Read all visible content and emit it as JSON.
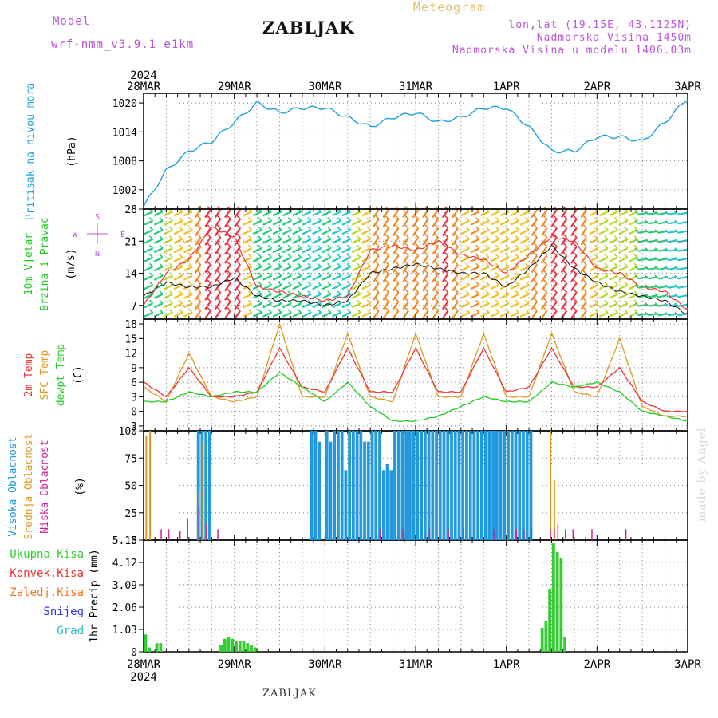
{
  "header": {
    "model_label": "Model",
    "model_name": "wrf-nmm_v3.9.1  e1km",
    "station": "ZABLJAK",
    "meteogram_label": "Meteogram",
    "lonlat": "lon,lat (19.15E, 43.1125N)",
    "altitude": "Nadmorska Visina 1450m",
    "model_altitude": "Nadmorska Visina u modelu 1406.03m",
    "watermark": "made by Angel",
    "footer_station": "ZABLJAK"
  },
  "colors": {
    "pressure": "#1ea0e0",
    "wind_label": "#22cc22",
    "t2m": "#ee3333",
    "sfc": "#dd9922",
    "dew": "#22cc22",
    "cloud_high": "#2299dd",
    "cloud_mid": "#dd9922",
    "cloud_low": "#cc2299",
    "precip_total": "#33cc33",
    "precip_conv": "#ee3333",
    "precip_frozen": "#ee7722",
    "snow": "#3333ee",
    "hail": "#22bbbb",
    "compass": "#bb55dd"
  },
  "axis": {
    "year": "2024",
    "dates": [
      "28MAR",
      "29MAR",
      "30MAR",
      "31MAR",
      "1APR",
      "2APR",
      "3APR"
    ]
  },
  "panels": {
    "pressure": {
      "label_lines": [
        "Pritisak na nivou mora"
      ],
      "unit": "(hPa)"
    },
    "wind": {
      "label_lines": [
        "10m Vjetar",
        "Brzina i Pravac"
      ],
      "unit": "(m/s)",
      "compass_labels": [
        "S",
        "W",
        "E",
        "N"
      ]
    },
    "temperature": {
      "label_lines": [
        "2m Temp",
        "SFC Temp",
        "dewpt Temp"
      ],
      "unit": "(C)"
    },
    "cloud": {
      "label_lines": [
        "Visoka Oblacnost",
        "Srednja Oblacnost",
        "Niska Oblacnost"
      ],
      "unit": "(%)"
    },
    "precip": {
      "legend": [
        "Ukupna Kisa",
        "Konvek.Kisa",
        "Zaledj.Kisa",
        "Snijeg",
        "Grad"
      ],
      "unit": "1hr Precip (mm)"
    }
  },
  "chart_data": [
    {
      "type": "line",
      "title": "Pritisak na nivou mora",
      "ylabel": "(hPa)",
      "ylim": [
        998,
        1022
      ],
      "yticks": [
        1002,
        1008,
        1014,
        1020
      ],
      "x_unit": "hours since 28MAR 00",
      "series": [
        {
          "name": "Pritisak na nivou mora",
          "x": [
            0,
            6,
            12,
            18,
            24,
            30,
            36,
            42,
            48,
            54,
            60,
            66,
            72,
            78,
            84,
            90,
            96,
            102,
            108,
            114,
            120,
            126,
            132,
            138,
            144
          ],
          "values": [
            998.5,
            1006,
            1010,
            1012,
            1016,
            1020,
            1018,
            1019,
            1019,
            1017,
            1015,
            1017,
            1018,
            1016,
            1017,
            1019,
            1019,
            1015,
            1010,
            1010,
            1013,
            1013,
            1012,
            1016,
            1021
          ]
        }
      ]
    },
    {
      "type": "line",
      "title": "10m Vjetar Brzina i Pravac",
      "ylabel": "(m/s)",
      "ylim": [
        4,
        28
      ],
      "yticks": [
        7,
        14,
        21,
        28
      ],
      "x_unit": "hours since 28MAR 00",
      "series": [
        {
          "name": "mean",
          "x": [
            0,
            6,
            12,
            18,
            24,
            30,
            36,
            42,
            48,
            54,
            60,
            66,
            72,
            78,
            84,
            90,
            96,
            102,
            108,
            114,
            120,
            126,
            132,
            138,
            144
          ],
          "values": [
            9,
            12,
            11,
            11,
            13,
            9,
            8,
            8,
            7,
            8,
            14,
            15,
            16,
            15,
            14,
            14,
            11,
            15,
            20,
            15,
            12,
            10,
            9,
            8,
            5
          ]
        },
        {
          "name": "gust",
          "x": [
            0,
            6,
            12,
            18,
            24,
            30,
            36,
            42,
            48,
            54,
            60,
            66,
            72,
            78,
            84,
            90,
            96,
            102,
            108,
            114,
            120,
            126,
            132,
            138,
            144
          ],
          "values": [
            7,
            14,
            17,
            24,
            22,
            11,
            10,
            9,
            8,
            9,
            19,
            20,
            19,
            21,
            18,
            17,
            14,
            18,
            22,
            21,
            15,
            14,
            11,
            10,
            6
          ]
        }
      ]
    },
    {
      "type": "line",
      "title": "2m Temp / SFC Temp / dewpt Temp",
      "ylabel": "(C)",
      "ylim": [
        -4,
        19
      ],
      "yticks": [
        -3,
        0,
        3,
        6,
        9,
        12,
        15,
        18
      ],
      "x_unit": "hours since 28MAR 00",
      "series": [
        {
          "name": "2m Temp",
          "x": [
            0,
            6,
            12,
            18,
            24,
            30,
            36,
            42,
            48,
            54,
            60,
            66,
            72,
            78,
            84,
            90,
            96,
            102,
            108,
            114,
            120,
            126,
            132,
            138,
            144
          ],
          "values": [
            6,
            3,
            9,
            3,
            3,
            4,
            13,
            5,
            4,
            13,
            4,
            4,
            13,
            4,
            4,
            13,
            4,
            5,
            13,
            5,
            5,
            9,
            2,
            0,
            0
          ]
        },
        {
          "name": "SFC Temp",
          "x": [
            0,
            6,
            12,
            18,
            24,
            30,
            36,
            42,
            48,
            54,
            60,
            66,
            72,
            78,
            84,
            90,
            96,
            102,
            108,
            114,
            120,
            126,
            132,
            138,
            144
          ],
          "values": [
            5,
            2,
            12,
            3,
            2,
            3,
            18,
            3,
            3,
            16,
            3,
            2,
            16,
            3,
            3,
            16,
            3,
            3,
            16,
            4,
            3,
            15,
            1,
            -1,
            -1
          ]
        },
        {
          "name": "dewpt Temp",
          "x": [
            0,
            6,
            12,
            18,
            24,
            30,
            36,
            42,
            48,
            54,
            60,
            66,
            72,
            78,
            84,
            90,
            96,
            102,
            108,
            114,
            120,
            126,
            132,
            138,
            144
          ],
          "values": [
            2,
            2,
            4,
            3,
            4,
            4,
            8,
            5,
            2,
            6,
            1,
            -2,
            -2,
            -1,
            1,
            3,
            2,
            2,
            6,
            5,
            6,
            4,
            0,
            -1,
            -2
          ]
        }
      ]
    },
    {
      "type": "bar",
      "title": "Oblacnost",
      "ylabel": "(%)",
      "ylim": [
        0,
        100
      ],
      "yticks": [
        0,
        25,
        50,
        75,
        100
      ],
      "x_unit": "hours since 28MAR 00",
      "series": [
        {
          "name": "Visoka Oblacnost",
          "x": [
            14,
            15,
            16,
            17,
            44,
            45,
            46,
            48,
            49,
            50,
            51,
            52,
            53,
            54,
            55,
            56,
            57,
            58,
            59,
            60,
            61,
            62,
            63,
            64,
            65,
            66,
            67,
            68,
            69,
            70,
            71,
            72,
            73,
            74,
            75,
            76,
            77,
            78,
            79,
            80,
            81,
            82,
            83,
            84,
            85,
            86,
            87,
            88,
            89,
            90,
            91,
            92,
            93,
            94,
            95,
            96,
            97,
            98,
            99,
            100,
            101,
            102
          ],
          "values": [
            100,
            100,
            100,
            100,
            100,
            100,
            90,
            100,
            90,
            100,
            100,
            100,
            64,
            100,
            100,
            100,
            100,
            90,
            90,
            100,
            100,
            100,
            64,
            70,
            64,
            100,
            100,
            100,
            100,
            100,
            100,
            100,
            100,
            100,
            100,
            100,
            100,
            100,
            100,
            100,
            100,
            100,
            100,
            100,
            100,
            100,
            100,
            100,
            100,
            100,
            100,
            100,
            100,
            100,
            100,
            100,
            100,
            100,
            100,
            100,
            100,
            100
          ]
        },
        {
          "name": "Srednja Oblacnost",
          "x": [
            0,
            1,
            14,
            15,
            107,
            108
          ],
          "values": [
            95,
            100,
            45,
            90,
            100,
            55
          ]
        },
        {
          "name": "Niska Oblacnost",
          "x": [
            4,
            6,
            9,
            11,
            14,
            16,
            19,
            62,
            68,
            75,
            80,
            84,
            92,
            98,
            100,
            102,
            107,
            108,
            109,
            111,
            113,
            118,
            127
          ],
          "values": [
            10,
            10,
            8,
            20,
            30,
            15,
            10,
            10,
            10,
            10,
            10,
            10,
            10,
            10,
            10,
            10,
            10,
            10,
            15,
            10,
            10,
            10,
            10
          ]
        }
      ]
    },
    {
      "type": "bar",
      "title": "1hr Precip",
      "ylabel": "1hr Precip (mm)",
      "ylim": [
        0,
        5.15
      ],
      "yticks": [
        0,
        1.03,
        2.06,
        3.09,
        4.12,
        5.15
      ],
      "x_unit": "hours since 28MAR 00",
      "series": [
        {
          "name": "Ukupna Kisa",
          "x": [
            0,
            1,
            3,
            4,
            20,
            21,
            22,
            23,
            24,
            25,
            26,
            27,
            28,
            29,
            105,
            106,
            107,
            108,
            109,
            110,
            111
          ],
          "values": [
            0.8,
            0.2,
            0.4,
            0.4,
            0.3,
            0.6,
            0.7,
            0.6,
            0.5,
            0.5,
            0.5,
            0.4,
            0.3,
            0.2,
            1.1,
            1.4,
            2.9,
            5.0,
            4.6,
            4.3,
            0.7
          ]
        }
      ]
    }
  ]
}
